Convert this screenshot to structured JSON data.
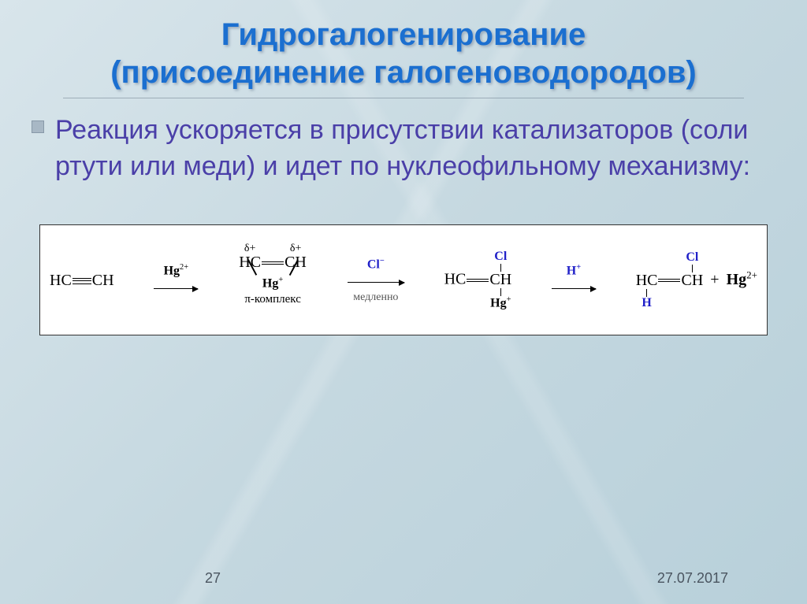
{
  "title_color": "#1b6fd0",
  "body_color": "#4a3fa8",
  "title_line1": "Гидрогалогенирование",
  "title_line2": "(присоединение галогеноводородов)",
  "body_text": "Реакция ускоряется в присутствии катализаторов (соли ртути или меди) и идет по нуклеофильному механизму:",
  "reaction": {
    "r1": "HC",
    "r1b": "CH",
    "arrow1_top": "Hg",
    "arrow1_top_charge": "2+",
    "arrow1_width": 56,
    "delta": "δ+",
    "pi_hg": "Hg",
    "pi_hg_charge": "+",
    "pi_label": "π-комплекс",
    "arrow2_top": "Cl",
    "arrow2_top_charge": "−",
    "arrow2_bottom": "медленно",
    "arrow2_width": 72,
    "p3_top_cl": "Cl",
    "p3_bot_hg": "Hg",
    "p3_bot_hg_charge": "+",
    "arrow3_top": "H",
    "arrow3_top_charge": "+",
    "arrow3_width": 56,
    "p4_top_cl": "Cl",
    "p4_bot_h": "H",
    "plus": "+",
    "hg_final": "Hg",
    "hg_final_charge": "2+"
  },
  "footer": {
    "page": "27",
    "date": "27.07.2017"
  }
}
